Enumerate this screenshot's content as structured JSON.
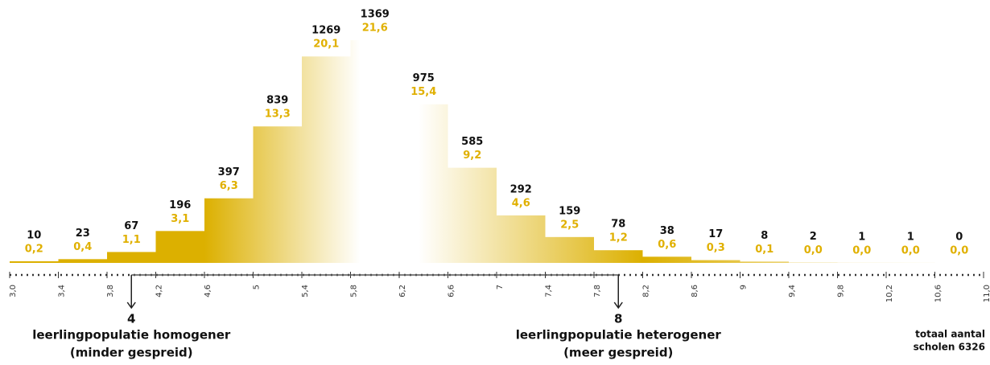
{
  "chart_data": {
    "type": "histogram",
    "bins": [
      {
        "value": 3.0,
        "label": "3,0"
      },
      {
        "value": 3.4,
        "label": "3,4"
      },
      {
        "value": 3.8,
        "label": "3,8"
      },
      {
        "value": 4.2,
        "label": "4,2"
      },
      {
        "value": 4.6,
        "label": "4,6"
      },
      5,
      {
        "value": 5.4,
        "label": "5,4"
      },
      {
        "value": 5.8,
        "label": "5,8"
      },
      {
        "value": 6.2,
        "label": "6,2"
      },
      {
        "value": 6.6,
        "label": "6,6"
      },
      7,
      {
        "value": 7.4,
        "label": "7,4"
      },
      {
        "value": 7.8,
        "label": "7,8"
      },
      {
        "value": 8.2,
        "label": "8,2"
      },
      {
        "value": 8.6,
        "label": "8,6"
      },
      9,
      {
        "value": 9.4,
        "label": "9,4"
      },
      {
        "value": 9.8,
        "label": "9,8"
      },
      {
        "value": 10.2,
        "label": "10,2"
      },
      {
        "value": 10.6,
        "label": "10,6"
      },
      {
        "value": 11.0,
        "label": "11,0"
      }
    ],
    "values": [
      10,
      23,
      67,
      196,
      397,
      839,
      1269,
      1369,
      975,
      585,
      292,
      159,
      78,
      38,
      17,
      8,
      2,
      1,
      1,
      0
    ],
    "percentages": [
      0.2,
      0.4,
      1.1,
      3.1,
      6.3,
      13.3,
      20.1,
      21.6,
      15.4,
      9.2,
      4.6,
      2.5,
      1.2,
      0.6,
      0.3,
      0.1,
      0.0,
      0.0,
      0.0,
      0.0
    ],
    "percentage_labels": [
      "0,2",
      "0,4",
      "1,1",
      "3,1",
      "6,3",
      "13,3",
      "20,1",
      "21,6",
      "15,4",
      "9,2",
      "4,6",
      "2,5",
      "1,2",
      "0,6",
      "0,3",
      "0,1",
      "0,0",
      "0,0",
      "0,0",
      "0,0"
    ],
    "color": "#dcb000",
    "label_color": "#e0b000",
    "annotations": [
      {
        "value": 4,
        "lines": [
          "leerlingpopulatie homogener",
          "(minder gespreid)"
        ]
      },
      {
        "value": 8,
        "lines": [
          "leerlingpopulatie heterogener",
          "(meer gespreid)"
        ]
      }
    ],
    "total_lines": [
      "totaal aantal",
      "scholen 6326"
    ]
  }
}
